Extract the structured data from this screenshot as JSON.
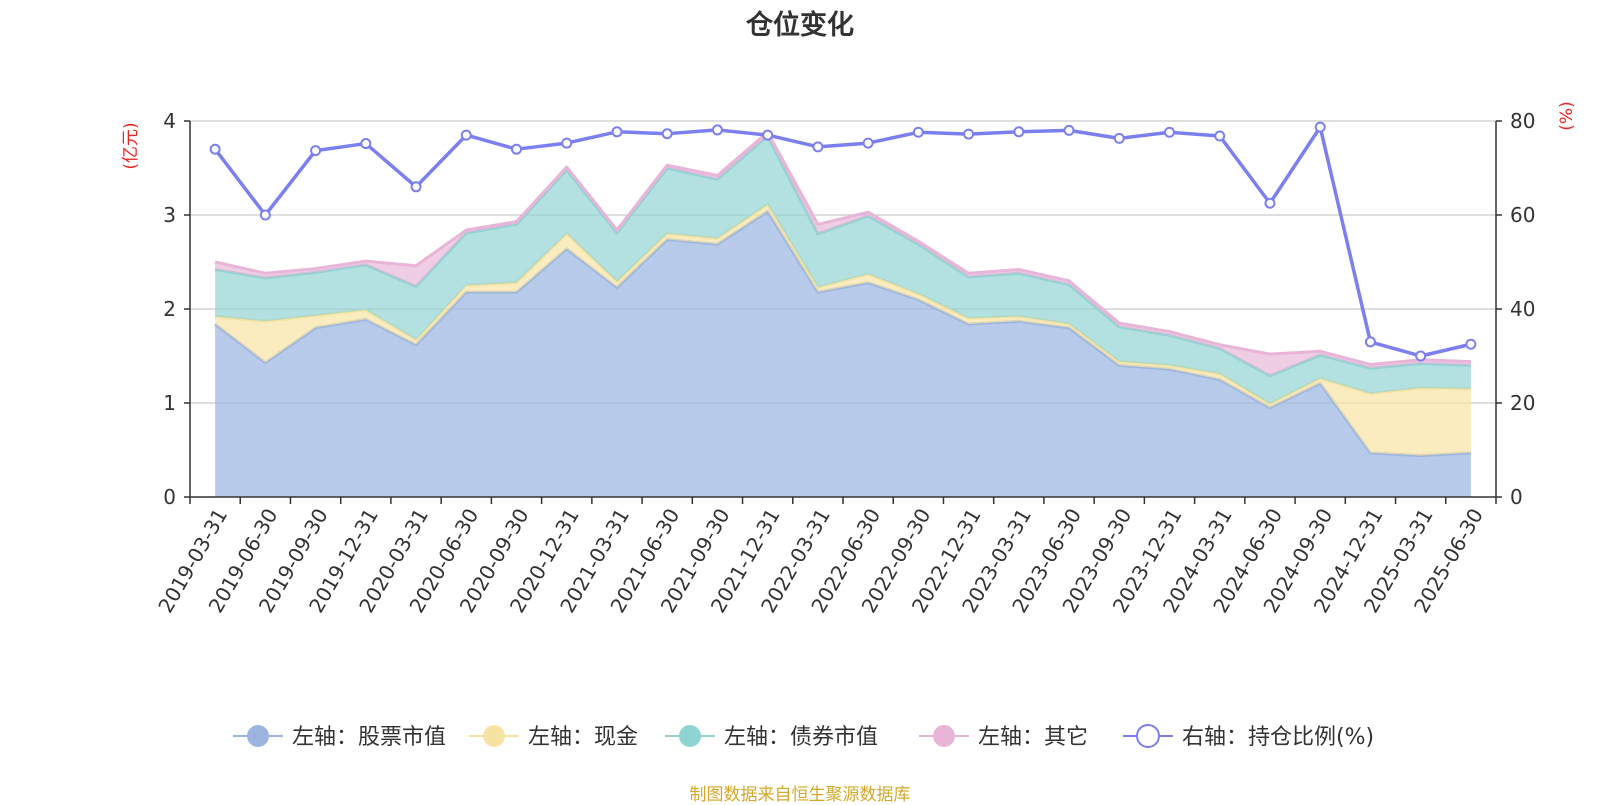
{
  "chart_data": {
    "type": "area",
    "title": "仓位变化",
    "left_axis_unit": "(亿元)",
    "right_axis_unit": "(%)",
    "ylim_left": [
      0,
      4
    ],
    "ylim_right": [
      0,
      80
    ],
    "left_ticks": [
      "0",
      "1",
      "2",
      "3",
      "4"
    ],
    "right_ticks": [
      "0",
      "20",
      "40",
      "60",
      "80"
    ],
    "grid": true,
    "stacked": true,
    "categories": [
      "2019-03-31",
      "2019-06-30",
      "2019-09-30",
      "2019-12-31",
      "2020-03-31",
      "2020-06-30",
      "2020-09-30",
      "2020-12-31",
      "2021-03-31",
      "2021-06-30",
      "2021-09-30",
      "2021-12-31",
      "2022-03-31",
      "2022-06-30",
      "2022-09-30",
      "2022-12-31",
      "2023-03-31",
      "2023-06-30",
      "2023-09-30",
      "2023-12-31",
      "2024-03-31",
      "2024-06-30",
      "2024-09-30",
      "2024-12-31",
      "2025-03-31",
      "2025-06-30"
    ],
    "series": [
      {
        "name": "左轴：股票市值",
        "axis": "left",
        "color": "#9bb5e0",
        "values": [
          1.84,
          1.43,
          1.8,
          1.89,
          1.62,
          2.18,
          2.18,
          2.64,
          2.23,
          2.74,
          2.69,
          3.04,
          2.18,
          2.28,
          2.1,
          1.84,
          1.87,
          1.8,
          1.4,
          1.36,
          1.25,
          0.95,
          1.21,
          0.47,
          0.44,
          0.47
        ]
      },
      {
        "name": "左轴：现金",
        "axis": "left",
        "color": "#f7e3a1",
        "values": [
          0.08,
          0.44,
          0.13,
          0.1,
          0.05,
          0.07,
          0.1,
          0.16,
          0.06,
          0.06,
          0.06,
          0.07,
          0.05,
          0.09,
          0.06,
          0.06,
          0.05,
          0.04,
          0.04,
          0.04,
          0.06,
          0.04,
          0.05,
          0.63,
          0.72,
          0.68
        ]
      },
      {
        "name": "左轴：债券市值",
        "axis": "left",
        "color": "#8fd3d3",
        "values": [
          0.5,
          0.46,
          0.46,
          0.48,
          0.57,
          0.56,
          0.62,
          0.68,
          0.52,
          0.7,
          0.63,
          0.73,
          0.57,
          0.62,
          0.53,
          0.44,
          0.46,
          0.42,
          0.37,
          0.32,
          0.27,
          0.3,
          0.25,
          0.27,
          0.26,
          0.25
        ]
      },
      {
        "name": "左轴：其它",
        "axis": "left",
        "color": "#e8b5d8",
        "values": [
          0.08,
          0.05,
          0.04,
          0.04,
          0.22,
          0.03,
          0.03,
          0.03,
          0.03,
          0.03,
          0.04,
          0.04,
          0.1,
          0.04,
          0.03,
          0.04,
          0.04,
          0.04,
          0.04,
          0.04,
          0.04,
          0.23,
          0.04,
          0.04,
          0.04,
          0.04
        ]
      },
      {
        "name": "右轴：持仓比例(%)",
        "axis": "right",
        "color": "#7b7ff0",
        "values": [
          74.0,
          60.0,
          73.7,
          75.2,
          66.0,
          77.0,
          74.0,
          75.3,
          77.7,
          77.3,
          78.1,
          77.0,
          74.5,
          75.3,
          77.6,
          77.2,
          77.7,
          78.0,
          76.3,
          77.6,
          76.8,
          62.5,
          78.7,
          33.0,
          30.0,
          32.5
        ]
      }
    ]
  },
  "footer": "制图数据来自恒生聚源数据库"
}
